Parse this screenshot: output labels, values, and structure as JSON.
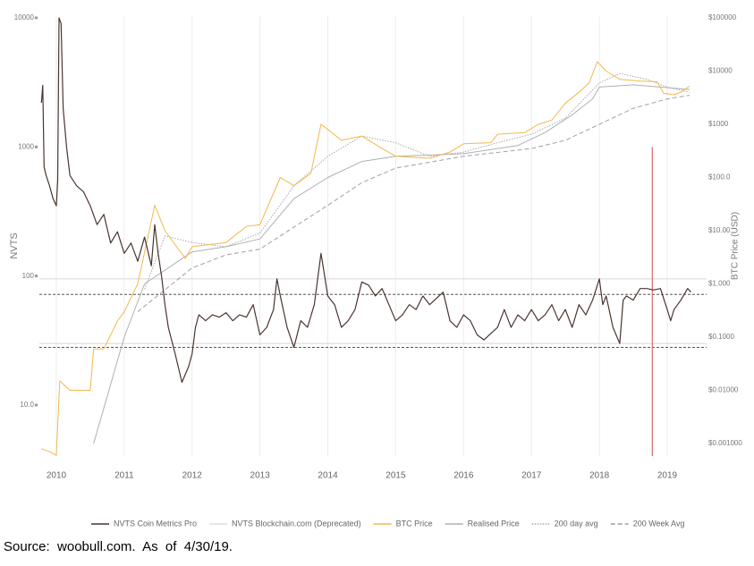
{
  "chart_data": {
    "type": "line",
    "xlim": [
      2009.75,
      2019.58
    ],
    "xticks": [
      2010,
      2011,
      2012,
      2013,
      2014,
      2015,
      2016,
      2017,
      2018,
      2019
    ],
    "ylim": [
      4.03,
      10320
    ],
    "ylog": true,
    "ylabel": "NVTS",
    "yticks": [
      {
        "value": 10,
        "label": "10.0"
      },
      100,
      1000,
      10000
    ],
    "y2lim": [
      0.000582,
      108000
    ],
    "y2log": true,
    "y2label": "BTC Price (USD)",
    "y2ticks": [
      {
        "value": 100000,
        "label": "$100000"
      },
      {
        "value": 10000,
        "label": "$10000"
      },
      {
        "value": 1000,
        "label": "$1000"
      },
      {
        "value": 100,
        "label": "$100.0"
      },
      {
        "value": 10,
        "label": "$10.00"
      },
      {
        "value": 1,
        "label": "$1.000"
      },
      {
        "value": 0.1,
        "label": "$0.1000"
      },
      {
        "value": 0.01,
        "label": "$0.01000"
      },
      {
        "value": 0.001,
        "label": "$0.001000"
      }
    ],
    "grid": true,
    "hlines_dashed": [
      72,
      28
    ],
    "hlines_solid": [
      95,
      30
    ],
    "vline": {
      "x": 2018.78,
      "top": 1000,
      "color": "#e06868"
    },
    "series": [
      {
        "name": "NVTS Coin Metrics Pro",
        "color": "#4a3530",
        "axis": "y",
        "dash": "solid",
        "x": [
          2009.78,
          2009.8,
          2009.82,
          2009.85,
          2009.9,
          2009.95,
          2010.0,
          2010.02,
          2010.04,
          2010.07,
          2010.1,
          2010.15,
          2010.2,
          2010.3,
          2010.4,
          2010.5,
          2010.6,
          2010.7,
          2010.8,
          2010.9,
          2011.0,
          2011.1,
          2011.2,
          2011.3,
          2011.4,
          2011.45,
          2011.5,
          2011.55,
          2011.6,
          2011.65,
          2011.75,
          2011.85,
          2011.95,
          2012.0,
          2012.05,
          2012.1,
          2012.2,
          2012.3,
          2012.4,
          2012.5,
          2012.6,
          2012.7,
          2012.8,
          2012.9,
          2013.0,
          2013.1,
          2013.2,
          2013.25,
          2013.3,
          2013.4,
          2013.5,
          2013.6,
          2013.7,
          2013.8,
          2013.9,
          2014.0,
          2014.1,
          2014.2,
          2014.3,
          2014.4,
          2014.5,
          2014.6,
          2014.7,
          2014.8,
          2014.9,
          2015.0,
          2015.1,
          2015.2,
          2015.3,
          2015.4,
          2015.5,
          2015.7,
          2015.8,
          2015.9,
          2016.0,
          2016.1,
          2016.2,
          2016.3,
          2016.5,
          2016.6,
          2016.7,
          2016.8,
          2016.9,
          2017.0,
          2017.1,
          2017.2,
          2017.3,
          2017.4,
          2017.5,
          2017.6,
          2017.7,
          2017.8,
          2017.9,
          2018.0,
          2018.05,
          2018.1,
          2018.2,
          2018.3,
          2018.35,
          2018.4,
          2018.5,
          2018.6,
          2018.7,
          2018.8,
          2018.9,
          2019.0,
          2019.05,
          2019.1,
          2019.2,
          2019.3,
          2019.35
        ],
        "values": [
          2200,
          3000,
          700,
          600,
          500,
          400,
          350,
          550,
          10000,
          9000,
          2000,
          1000,
          600,
          500,
          450,
          350,
          250,
          300,
          180,
          220,
          150,
          180,
          130,
          200,
          120,
          250,
          150,
          100,
          60,
          40,
          25,
          15,
          20,
          25,
          40,
          50,
          45,
          50,
          48,
          52,
          45,
          50,
          48,
          60,
          35,
          40,
          55,
          95,
          70,
          40,
          28,
          45,
          40,
          60,
          150,
          70,
          60,
          40,
          45,
          55,
          90,
          85,
          70,
          80,
          60,
          45,
          50,
          60,
          55,
          70,
          60,
          75,
          45,
          40,
          50,
          45,
          35,
          32,
          40,
          55,
          40,
          50,
          45,
          55,
          45,
          50,
          60,
          45,
          55,
          40,
          60,
          50,
          65,
          95,
          60,
          70,
          40,
          30,
          65,
          70,
          65,
          80,
          80,
          78,
          80,
          55,
          45,
          55,
          65,
          80,
          75
        ]
      },
      {
        "name": "NVTS Blockchain.com (Deprecated)",
        "color": "#dddddd",
        "axis": "y",
        "dash": "solid",
        "x": [],
        "values": []
      },
      {
        "name": "BTC Price",
        "color": "#f2b84e",
        "axis": "y2",
        "dash": "solid",
        "x": [
          2009.78,
          2009.9,
          2010.0,
          2010.05,
          2010.2,
          2010.5,
          2010.55,
          2010.7,
          2010.9,
          2011.0,
          2011.2,
          2011.45,
          2011.6,
          2011.9,
          2012.0,
          2012.5,
          2012.8,
          2013.0,
          2013.3,
          2013.5,
          2013.75,
          2013.9,
          2014.0,
          2014.2,
          2014.5,
          2014.8,
          2015.0,
          2015.5,
          2015.8,
          2016.0,
          2016.4,
          2016.5,
          2016.9,
          2017.1,
          2017.3,
          2017.5,
          2017.7,
          2017.85,
          2017.97,
          2018.1,
          2018.3,
          2018.6,
          2018.85,
          2018.95,
          2019.1,
          2019.2,
          2019.33
        ],
        "values": [
          0.0008,
          0.0007,
          0.0006,
          0.015,
          0.01,
          0.01,
          0.06,
          0.06,
          0.2,
          0.3,
          1,
          30,
          10,
          3,
          5,
          6,
          12,
          13,
          100,
          70,
          120,
          1000,
          800,
          500,
          600,
          350,
          250,
          230,
          300,
          430,
          450,
          650,
          700,
          1000,
          1200,
          2500,
          4000,
          6000,
          15000,
          10000,
          7000,
          6500,
          6300,
          3800,
          3600,
          4000,
          5200
        ]
      },
      {
        "name": "Realised Price",
        "color": "#b0b0b0",
        "axis": "y2",
        "dash": "solid",
        "x": [
          2010.55,
          2011.0,
          2011.3,
          2012.0,
          2012.5,
          2013.0,
          2013.5,
          2014.0,
          2014.5,
          2015.0,
          2016.0,
          2016.8,
          2017.2,
          2017.6,
          2017.9,
          2018.0,
          2018.5,
          2018.9,
          2019.33
        ],
        "values": [
          0.001,
          0.1,
          1,
          4,
          5,
          7,
          40,
          100,
          200,
          250,
          280,
          400,
          700,
          1500,
          3000,
          5000,
          5500,
          5000,
          4500
        ]
      },
      {
        "name": "200 day avg",
        "color": "#a8a8a8",
        "axis": "y2",
        "dash": "dotted",
        "x": [
          2011.3,
          2011.6,
          2012.0,
          2012.5,
          2013.0,
          2013.5,
          2014.0,
          2014.5,
          2015.0,
          2015.5,
          2016.0,
          2016.5,
          2017.0,
          2017.5,
          2018.0,
          2018.3,
          2018.7,
          2019.0,
          2019.33
        ],
        "values": [
          0.8,
          8,
          6,
          5,
          9,
          70,
          250,
          600,
          450,
          250,
          300,
          450,
          650,
          1300,
          6000,
          9000,
          7000,
          5000,
          4000
        ]
      },
      {
        "name": "200 Week Avg",
        "color": "#a0a0a0",
        "axis": "y2",
        "dash": "dashed",
        "x": [
          2011.2,
          2012.0,
          2012.5,
          2013.0,
          2014.0,
          2014.5,
          2015.0,
          2016.0,
          2017.0,
          2017.5,
          2018.0,
          2018.5,
          2019.0,
          2019.33
        ],
        "values": [
          0.3,
          2,
          3.5,
          4.5,
          30,
          80,
          150,
          250,
          350,
          500,
          1000,
          2000,
          3000,
          3500
        ]
      }
    ]
  },
  "source": "Source:  woobull.com.  As  of  4/30/19."
}
